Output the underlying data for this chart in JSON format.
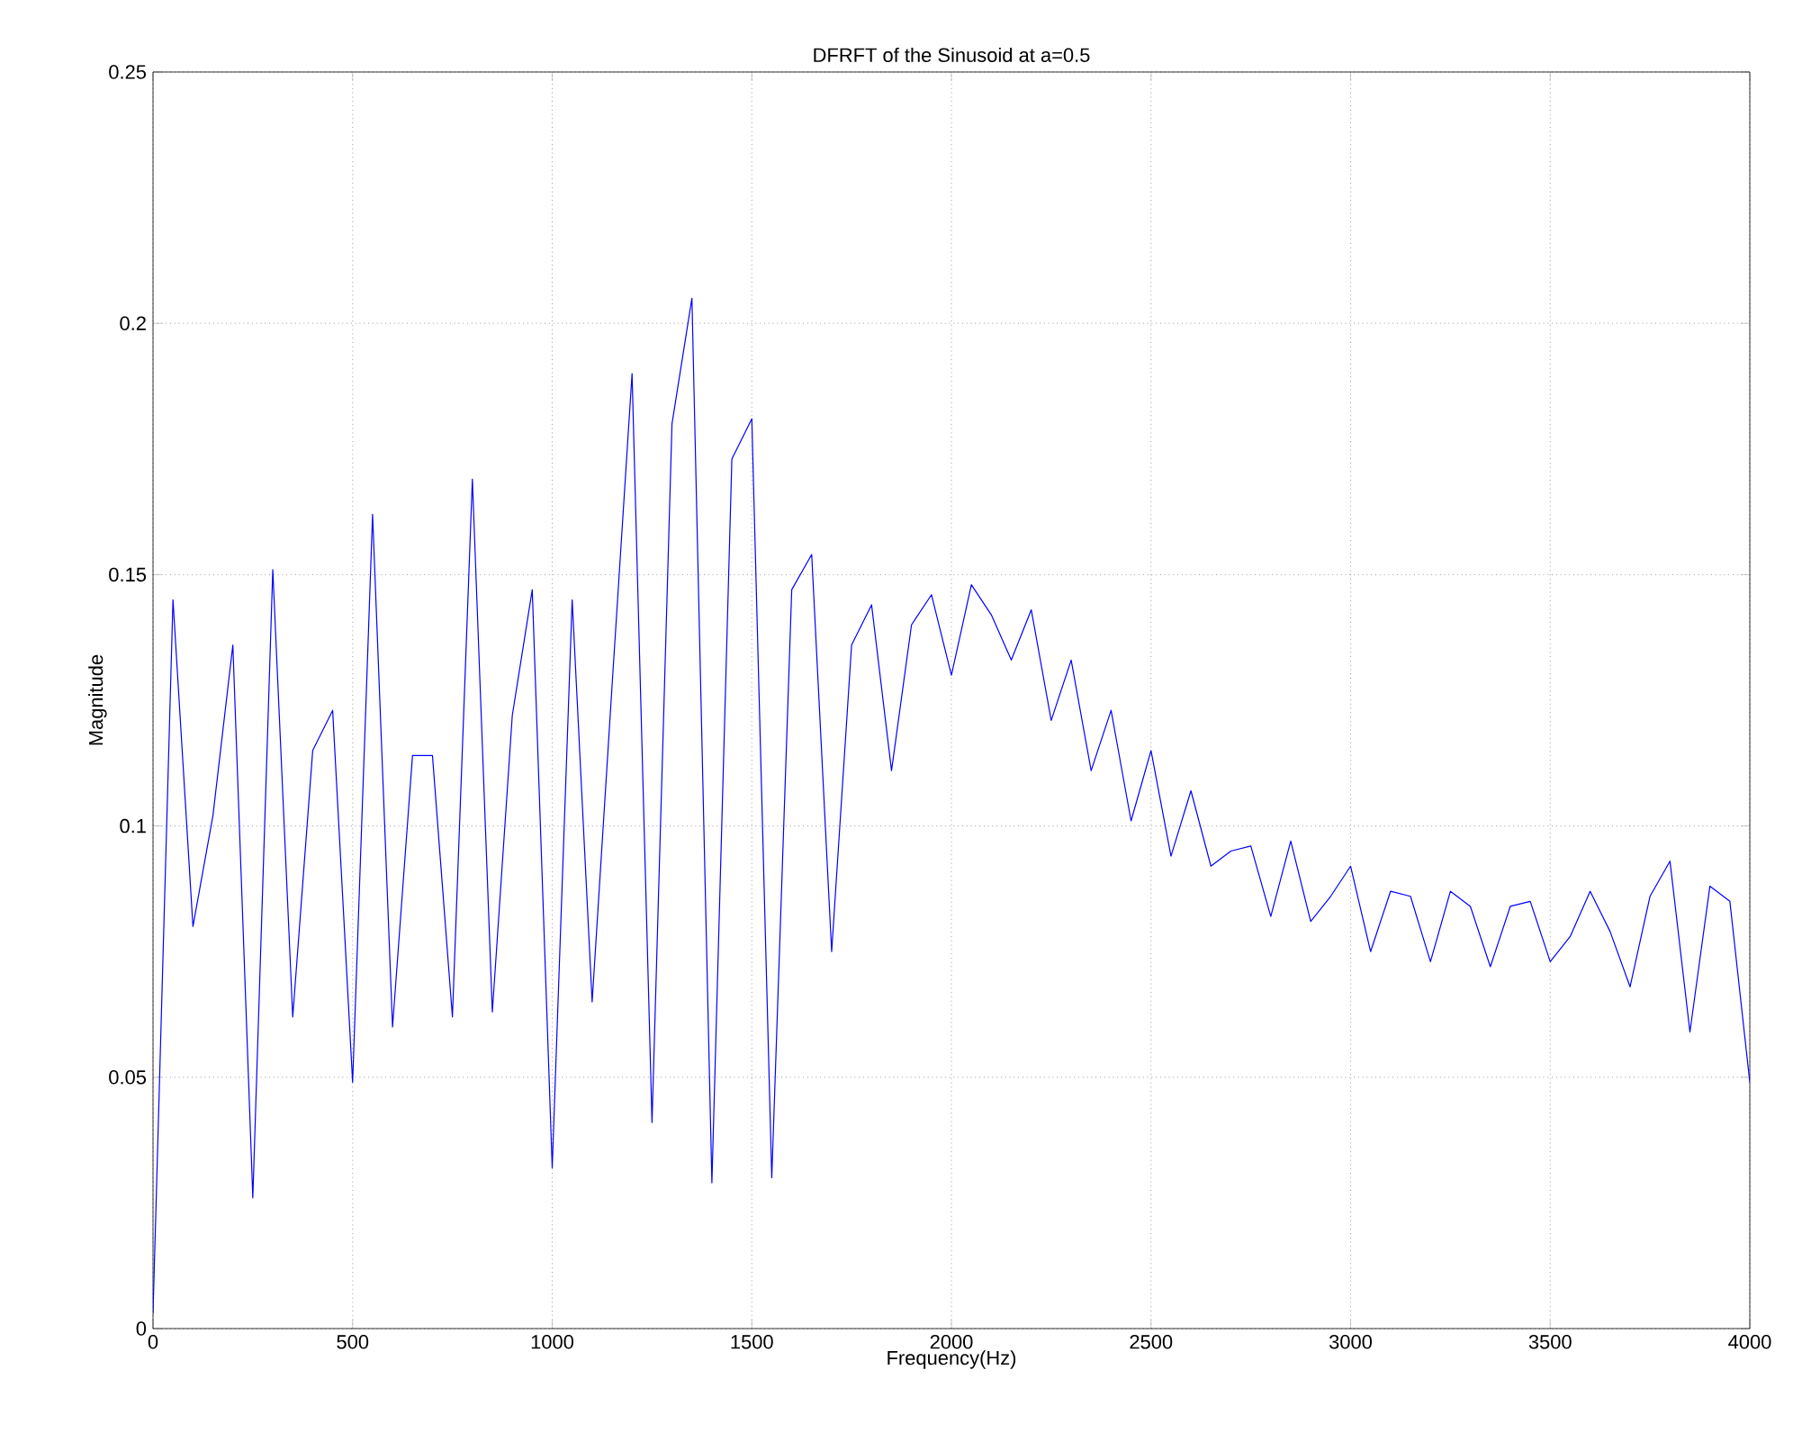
{
  "chart_data": {
    "type": "line",
    "title": "DFRFT of the Sinusoid at a=0.5",
    "xlabel": "Frequency(Hz)",
    "ylabel": "Magnitude",
    "x": [
      0,
      50,
      100,
      150,
      200,
      250,
      300,
      350,
      400,
      450,
      500,
      550,
      600,
      650,
      700,
      750,
      800,
      850,
      900,
      950,
      1000,
      1050,
      1100,
      1150,
      1200,
      1250,
      1300,
      1350,
      1400,
      1450,
      1500,
      1550,
      1600,
      1650,
      1700,
      1750,
      1800,
      1850,
      1900,
      1950,
      2000,
      2050,
      2100,
      2150,
      2200,
      2250,
      2300,
      2350,
      2400,
      2450,
      2500,
      2550,
      2600,
      2650,
      2700,
      2750,
      2800,
      2850,
      2900,
      2950,
      3000,
      3050,
      3100,
      3150,
      3200,
      3250,
      3300,
      3350,
      3400,
      3450,
      3500,
      3550,
      3600,
      3650,
      3700,
      3750,
      3800,
      3850,
      3900,
      3950,
      4000
    ],
    "series": [
      {
        "color": "#0000ff",
        "values": [
          0.003,
          0.145,
          0.08,
          0.102,
          0.136,
          0.026,
          0.151,
          0.062,
          0.115,
          0.123,
          0.049,
          0.162,
          0.06,
          0.114,
          0.114,
          0.062,
          0.169,
          0.063,
          0.122,
          0.147,
          0.032,
          0.145,
          0.065,
          0.128,
          0.19,
          0.041,
          0.18,
          0.205,
          0.029,
          0.173,
          0.181,
          0.03,
          0.147,
          0.154,
          0.075,
          0.136,
          0.144,
          0.111,
          0.14,
          0.146,
          0.13,
          0.148,
          0.142,
          0.133,
          0.143,
          0.121,
          0.133,
          0.111,
          0.123,
          0.101,
          0.115,
          0.094,
          0.107,
          0.092,
          0.095,
          0.096,
          0.082,
          0.097,
          0.081,
          0.086,
          0.092,
          0.075,
          0.087,
          0.086,
          0.073,
          0.087,
          0.084,
          0.072,
          0.084,
          0.085,
          0.073,
          0.078,
          0.087,
          0.079,
          0.068,
          0.086,
          0.093,
          0.059,
          0.088,
          0.085,
          0.049
        ]
      }
    ],
    "xlim": [
      0,
      4000
    ],
    "ylim": [
      0,
      0.25
    ],
    "xticks": [
      0,
      500,
      1000,
      1500,
      2000,
      2500,
      3000,
      3500,
      4000
    ],
    "yticks": [
      0,
      0.05,
      0.1,
      0.15,
      0.2,
      0.25
    ],
    "grid": true,
    "marker": "none",
    "line_style": "solid"
  }
}
